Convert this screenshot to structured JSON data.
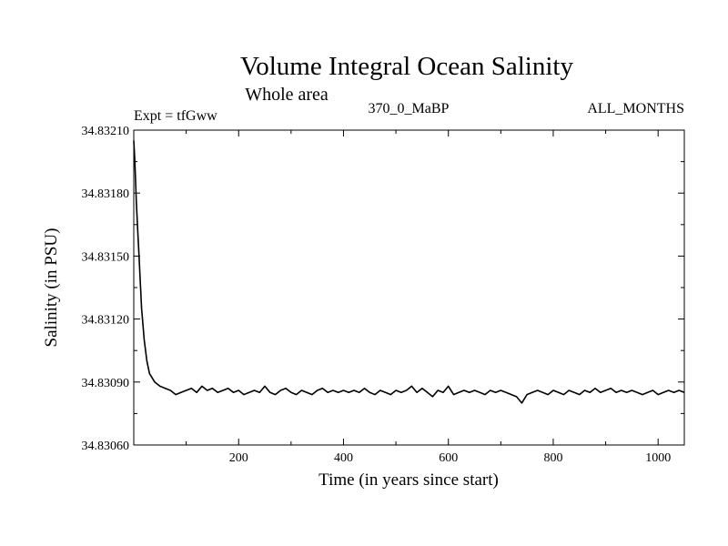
{
  "chart_data": {
    "type": "line",
    "title": "Volume Integral Ocean Salinity",
    "subtitle": "Whole area",
    "annotations": {
      "left": "Expt = tfGww",
      "center": "370_0_MaBP",
      "right": "ALL_MONTHS"
    },
    "xlabel": "Time (in years since start)",
    "ylabel": "Salinity (in PSU)",
    "xlim": [
      0,
      1050
    ],
    "ylim": [
      34.8306,
      34.8321
    ],
    "x_ticks": [
      200,
      400,
      600,
      800,
      1000
    ],
    "x_tick_labels": [
      "200",
      "400",
      "600",
      "800",
      "1000"
    ],
    "y_ticks": [
      34.8306,
      34.8309,
      34.8312,
      34.8315,
      34.8318,
      34.8321
    ],
    "y_tick_labels": [
      "34.83060",
      "34.83090",
      "34.83120",
      "34.83150",
      "34.83180",
      "34.83210"
    ],
    "grid": false,
    "series": [
      {
        "name": "Salinity",
        "color": "#000000",
        "x": [
          0,
          2,
          5,
          8,
          10,
          12,
          15,
          20,
          25,
          30,
          35,
          40,
          45,
          50,
          60,
          70,
          80,
          90,
          100,
          110,
          120,
          130,
          140,
          150,
          160,
          170,
          180,
          190,
          200,
          210,
          220,
          230,
          240,
          250,
          260,
          270,
          280,
          290,
          300,
          310,
          320,
          330,
          340,
          350,
          360,
          370,
          380,
          390,
          400,
          410,
          420,
          430,
          440,
          450,
          460,
          470,
          480,
          490,
          500,
          510,
          520,
          530,
          540,
          550,
          560,
          570,
          580,
          590,
          600,
          610,
          620,
          630,
          640,
          650,
          660,
          670,
          680,
          690,
          700,
          710,
          720,
          730,
          740,
          750,
          760,
          770,
          780,
          790,
          800,
          810,
          820,
          830,
          840,
          850,
          860,
          870,
          880,
          890,
          900,
          910,
          920,
          930,
          940,
          950,
          960,
          970,
          980,
          990,
          1000,
          1010,
          1020,
          1030,
          1040,
          1050
        ],
        "y": [
          34.83205,
          34.83195,
          34.83175,
          34.8316,
          34.8315,
          34.8314,
          34.83125,
          34.8311,
          34.831,
          34.83094,
          34.83092,
          34.8309,
          34.83089,
          34.83088,
          34.83087,
          34.83086,
          34.83084,
          34.83085,
          34.83086,
          34.83087,
          34.83085,
          34.83088,
          34.83086,
          34.83087,
          34.83085,
          34.83086,
          34.83087,
          34.83085,
          34.83086,
          34.83084,
          34.83085,
          34.83086,
          34.83085,
          34.83088,
          34.83085,
          34.83084,
          34.83086,
          34.83087,
          34.83085,
          34.83084,
          34.83086,
          34.83085,
          34.83084,
          34.83086,
          34.83087,
          34.83085,
          34.83086,
          34.83085,
          34.83086,
          34.83085,
          34.83086,
          34.83085,
          34.83087,
          34.83085,
          34.83084,
          34.83086,
          34.83085,
          34.83084,
          34.83086,
          34.83085,
          34.83086,
          34.83088,
          34.83085,
          34.83087,
          34.83085,
          34.83083,
          34.83086,
          34.83085,
          34.83088,
          34.83084,
          34.83085,
          34.83086,
          34.83085,
          34.83086,
          34.83085,
          34.83084,
          34.83086,
          34.83085,
          34.83086,
          34.83085,
          34.83084,
          34.83083,
          34.8308,
          34.83084,
          34.83085,
          34.83086,
          34.83085,
          34.83084,
          34.83086,
          34.83085,
          34.83084,
          34.83086,
          34.83085,
          34.83084,
          34.83086,
          34.83085,
          34.83087,
          34.83085,
          34.83086,
          34.83087,
          34.83085,
          34.83086,
          34.83085,
          34.83086,
          34.83085,
          34.83084,
          34.83085,
          34.83086,
          34.83084,
          34.83085,
          34.83086,
          34.83085,
          34.83086,
          34.83085
        ]
      }
    ]
  }
}
